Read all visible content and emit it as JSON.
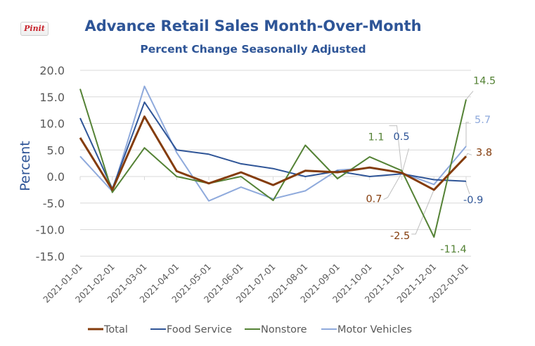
{
  "pin_button": {
    "label": "Pinit",
    "icon": "pinterest-pin-it-icon"
  },
  "chart_data": {
    "type": "line",
    "title": "Advance Retail Sales Month-Over-Month",
    "subtitle": "Percent Change Seasonally Adjusted",
    "xlabel": "",
    "ylabel": "Percent",
    "ylim": [
      -15,
      20
    ],
    "yticks": [
      20,
      15,
      10,
      5,
      0,
      -5,
      -10,
      -15
    ],
    "ytick_labels": [
      "20.0",
      "15.0",
      "10.0",
      "5.0",
      "0.0",
      "-5.0",
      "-10.0",
      "-15.0"
    ],
    "grid": true,
    "legend_position": "bottom",
    "categories": [
      "2021-01-01",
      "2021-02-01",
      "2021-03-01",
      "2021-04-01",
      "2021-05-01",
      "2021-06-01",
      "2021-07-01",
      "2021-08-01",
      "2021-09-01",
      "2021-10-01",
      "2021-11-01",
      "2021-12-01",
      "2022-01-01"
    ],
    "series": [
      {
        "name": "Total",
        "color": "#843c0c",
        "values": [
          7.3,
          -2.5,
          11.3,
          1.0,
          -1.3,
          0.8,
          -1.6,
          1.1,
          0.8,
          1.7,
          0.7,
          -2.5,
          3.8
        ]
      },
      {
        "name": "Food Service",
        "color": "#2f5597",
        "values": [
          11.0,
          -2.3,
          14.0,
          5.0,
          4.2,
          2.4,
          1.5,
          0.0,
          1.0,
          0.0,
          0.5,
          -0.6,
          -0.9
        ]
      },
      {
        "name": "Nonstore",
        "color": "#548235",
        "values": [
          16.5,
          -3.0,
          5.4,
          0.0,
          -1.3,
          0.0,
          -4.5,
          5.9,
          -0.4,
          3.7,
          1.1,
          -11.4,
          14.5
        ]
      },
      {
        "name": "Motor Vehicles",
        "color": "#8faadc",
        "values": [
          3.8,
          -2.8,
          17.0,
          4.5,
          -4.6,
          -2.0,
          -4.2,
          -2.7,
          1.2,
          1.6,
          0.7,
          -1.5,
          5.7
        ]
      }
    ],
    "annotations": [
      {
        "text": "14.5",
        "series": "Nonstore",
        "category": "2022-01-01"
      },
      {
        "text": "5.7",
        "series": "Motor Vehicles",
        "category": "2022-01-01"
      },
      {
        "text": "3.8",
        "series": "Total",
        "category": "2022-01-01"
      },
      {
        "text": "-0.9",
        "series": "Food Service",
        "category": "2022-01-01"
      },
      {
        "text": "1.1",
        "series": "Nonstore",
        "category": "2021-11-01"
      },
      {
        "text": "0.5",
        "series": "Food Service",
        "category": "2021-11-01"
      },
      {
        "text": "0.7",
        "series": "Total",
        "category": "2021-11-01"
      },
      {
        "text": "-2.5",
        "series": "Total",
        "category": "2021-12-01"
      },
      {
        "text": "-11.4",
        "series": "Nonstore",
        "category": "2021-12-01"
      }
    ]
  }
}
